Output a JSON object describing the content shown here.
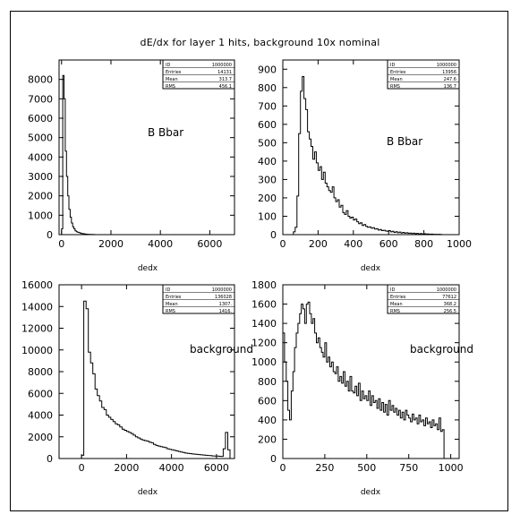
{
  "title": "dE/dx for layer 1 hits, background 10x nominal",
  "chart_data": [
    {
      "type": "histogram",
      "xlabel": "dedx",
      "annotation": "B Bbar",
      "xlim": [
        -100,
        7000
      ],
      "ylim": [
        0,
        9000
      ],
      "xticks": [
        0,
        2000,
        4000,
        6000
      ],
      "yticks": [
        0,
        1000,
        2000,
        3000,
        4000,
        5000,
        6000,
        7000,
        8000
      ],
      "stats": {
        "ID": "1000000",
        "Entries": "14131",
        "Mean": "313.7",
        "RMS": "456.1"
      },
      "bins": {
        "start": 0,
        "width": 50,
        "values": [
          300,
          8200,
          7000,
          4300,
          3000,
          2000,
          1300,
          900,
          600,
          400,
          300,
          200,
          150,
          120,
          100,
          80,
          60,
          50,
          40,
          30,
          25,
          20,
          15,
          10,
          8,
          5,
          3,
          2
        ]
      }
    },
    {
      "type": "histogram",
      "xlabel": "dedx",
      "annotation": "B Bbar",
      "xlim": [
        0,
        1000
      ],
      "ylim": [
        0,
        950
      ],
      "xticks": [
        0,
        200,
        400,
        600,
        800,
        1000
      ],
      "yticks": [
        0,
        100,
        200,
        300,
        400,
        500,
        600,
        700,
        800,
        900
      ],
      "stats": {
        "ID": "1000000",
        "Entries": "13956",
        "Mean": "247.6",
        "RMS": "136.7"
      },
      "bins": {
        "start": 60,
        "width": 10,
        "values": [
          15,
          40,
          210,
          550,
          780,
          860,
          740,
          680,
          560,
          520,
          480,
          410,
          450,
          390,
          350,
          370,
          300,
          340,
          280,
          260,
          240,
          230,
          260,
          200,
          180,
          190,
          150,
          160,
          120,
          110,
          130,
          100,
          90,
          95,
          80,
          85,
          70,
          60,
          65,
          50,
          55,
          45,
          40,
          42,
          35,
          38,
          30,
          32,
          25,
          28,
          22,
          24,
          20,
          18,
          22,
          15,
          18,
          12,
          16,
          10,
          14,
          9,
          12,
          8,
          10,
          7,
          9,
          6,
          8,
          5,
          7,
          4,
          6,
          3,
          5,
          3,
          4,
          2,
          3,
          2,
          2,
          1,
          2,
          1
        ]
      }
    },
    {
      "type": "histogram",
      "xlabel": "dedx",
      "annotation": "background",
      "xlim": [
        -1000,
        6800
      ],
      "ylim": [
        0,
        16000
      ],
      "xticks": [
        0,
        2000,
        4000,
        6000
      ],
      "yticks": [
        0,
        2000,
        4000,
        6000,
        8000,
        10000,
        12000,
        14000,
        16000
      ],
      "stats": {
        "ID": "1000000",
        "Entries": "136028",
        "Mean": "1307.",
        "RMS": "1416."
      },
      "bins": {
        "start": 0,
        "width": 100,
        "values": [
          300,
          14500,
          13800,
          9800,
          8800,
          7800,
          6400,
          5800,
          5300,
          4700,
          4500,
          4000,
          3800,
          3600,
          3400,
          3200,
          3100,
          2900,
          2700,
          2600,
          2500,
          2400,
          2300,
          2150,
          2000,
          1900,
          1800,
          1700,
          1650,
          1600,
          1500,
          1450,
          1300,
          1200,
          1150,
          1100,
          1050,
          1000,
          900,
          850,
          800,
          750,
          700,
          650,
          600,
          550,
          500,
          480,
          450,
          420,
          400,
          380,
          360,
          340,
          320,
          300,
          280,
          260,
          240,
          230,
          220,
          210,
          200,
          900,
          2400,
          800
        ]
      }
    },
    {
      "type": "histogram",
      "xlabel": "dedx",
      "annotation": "background",
      "xlim": [
        0,
        1050
      ],
      "ylim": [
        0,
        1800
      ],
      "xticks": [
        0,
        250,
        500,
        750,
        1000
      ],
      "yticks": [
        0,
        200,
        400,
        600,
        800,
        1000,
        1200,
        1400,
        1600,
        1800
      ],
      "stats": {
        "ID": "1000000",
        "Entries": "77612",
        "Mean": "368.2",
        "RMS": "256.5"
      },
      "bins": {
        "start": 0,
        "width": 10,
        "values": [
          1300,
          1000,
          800,
          500,
          400,
          700,
          900,
          1150,
          1300,
          1400,
          1500,
          1600,
          1550,
          1400,
          1600,
          1620,
          1500,
          1400,
          1450,
          1300,
          1200,
          1250,
          1150,
          1100,
          1050,
          1200,
          1000,
          1050,
          950,
          1000,
          900,
          880,
          950,
          800,
          850,
          780,
          900,
          750,
          800,
          700,
          850,
          700,
          680,
          750,
          650,
          780,
          600,
          700,
          620,
          650,
          600,
          700,
          550,
          650,
          580,
          600,
          520,
          620,
          500,
          580,
          480,
          560,
          450,
          600,
          500,
          550,
          480,
          520,
          450,
          500,
          420,
          480,
          400,
          500,
          450,
          420,
          380,
          460,
          400,
          420,
          360,
          450,
          380,
          400,
          340,
          420,
          360,
          380,
          320,
          400,
          340,
          360,
          300,
          420,
          280,
          300
        ]
      }
    }
  ]
}
